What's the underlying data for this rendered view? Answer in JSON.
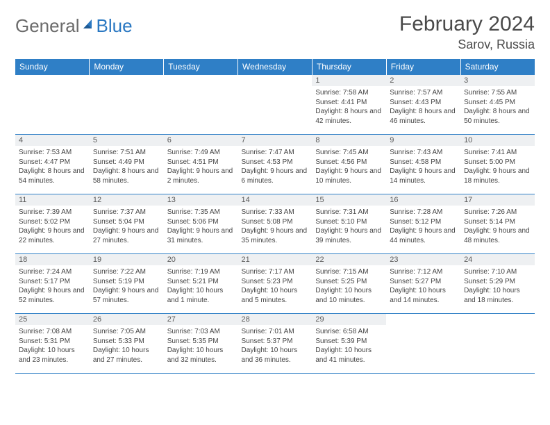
{
  "brand": {
    "part1": "General",
    "part2": "Blue"
  },
  "title": "February 2024",
  "location": "Sarov, Russia",
  "colors": {
    "header_bg": "#2f7fc6",
    "header_text": "#ffffff",
    "daynum_bg": "#eef0f2",
    "text": "#444444",
    "border": "#2f7fc6",
    "logo_gray": "#6b6b6b",
    "logo_blue": "#2a78c2"
  },
  "weekdays": [
    "Sunday",
    "Monday",
    "Tuesday",
    "Wednesday",
    "Thursday",
    "Friday",
    "Saturday"
  ],
  "weeks": [
    [
      null,
      null,
      null,
      null,
      {
        "n": "1",
        "sunrise": "Sunrise: 7:58 AM",
        "sunset": "Sunset: 4:41 PM",
        "daylight": "Daylight: 8 hours and 42 minutes."
      },
      {
        "n": "2",
        "sunrise": "Sunrise: 7:57 AM",
        "sunset": "Sunset: 4:43 PM",
        "daylight": "Daylight: 8 hours and 46 minutes."
      },
      {
        "n": "3",
        "sunrise": "Sunrise: 7:55 AM",
        "sunset": "Sunset: 4:45 PM",
        "daylight": "Daylight: 8 hours and 50 minutes."
      }
    ],
    [
      {
        "n": "4",
        "sunrise": "Sunrise: 7:53 AM",
        "sunset": "Sunset: 4:47 PM",
        "daylight": "Daylight: 8 hours and 54 minutes."
      },
      {
        "n": "5",
        "sunrise": "Sunrise: 7:51 AM",
        "sunset": "Sunset: 4:49 PM",
        "daylight": "Daylight: 8 hours and 58 minutes."
      },
      {
        "n": "6",
        "sunrise": "Sunrise: 7:49 AM",
        "sunset": "Sunset: 4:51 PM",
        "daylight": "Daylight: 9 hours and 2 minutes."
      },
      {
        "n": "7",
        "sunrise": "Sunrise: 7:47 AM",
        "sunset": "Sunset: 4:53 PM",
        "daylight": "Daylight: 9 hours and 6 minutes."
      },
      {
        "n": "8",
        "sunrise": "Sunrise: 7:45 AM",
        "sunset": "Sunset: 4:56 PM",
        "daylight": "Daylight: 9 hours and 10 minutes."
      },
      {
        "n": "9",
        "sunrise": "Sunrise: 7:43 AM",
        "sunset": "Sunset: 4:58 PM",
        "daylight": "Daylight: 9 hours and 14 minutes."
      },
      {
        "n": "10",
        "sunrise": "Sunrise: 7:41 AM",
        "sunset": "Sunset: 5:00 PM",
        "daylight": "Daylight: 9 hours and 18 minutes."
      }
    ],
    [
      {
        "n": "11",
        "sunrise": "Sunrise: 7:39 AM",
        "sunset": "Sunset: 5:02 PM",
        "daylight": "Daylight: 9 hours and 22 minutes."
      },
      {
        "n": "12",
        "sunrise": "Sunrise: 7:37 AM",
        "sunset": "Sunset: 5:04 PM",
        "daylight": "Daylight: 9 hours and 27 minutes."
      },
      {
        "n": "13",
        "sunrise": "Sunrise: 7:35 AM",
        "sunset": "Sunset: 5:06 PM",
        "daylight": "Daylight: 9 hours and 31 minutes."
      },
      {
        "n": "14",
        "sunrise": "Sunrise: 7:33 AM",
        "sunset": "Sunset: 5:08 PM",
        "daylight": "Daylight: 9 hours and 35 minutes."
      },
      {
        "n": "15",
        "sunrise": "Sunrise: 7:31 AM",
        "sunset": "Sunset: 5:10 PM",
        "daylight": "Daylight: 9 hours and 39 minutes."
      },
      {
        "n": "16",
        "sunrise": "Sunrise: 7:28 AM",
        "sunset": "Sunset: 5:12 PM",
        "daylight": "Daylight: 9 hours and 44 minutes."
      },
      {
        "n": "17",
        "sunrise": "Sunrise: 7:26 AM",
        "sunset": "Sunset: 5:14 PM",
        "daylight": "Daylight: 9 hours and 48 minutes."
      }
    ],
    [
      {
        "n": "18",
        "sunrise": "Sunrise: 7:24 AM",
        "sunset": "Sunset: 5:17 PM",
        "daylight": "Daylight: 9 hours and 52 minutes."
      },
      {
        "n": "19",
        "sunrise": "Sunrise: 7:22 AM",
        "sunset": "Sunset: 5:19 PM",
        "daylight": "Daylight: 9 hours and 57 minutes."
      },
      {
        "n": "20",
        "sunrise": "Sunrise: 7:19 AM",
        "sunset": "Sunset: 5:21 PM",
        "daylight": "Daylight: 10 hours and 1 minute."
      },
      {
        "n": "21",
        "sunrise": "Sunrise: 7:17 AM",
        "sunset": "Sunset: 5:23 PM",
        "daylight": "Daylight: 10 hours and 5 minutes."
      },
      {
        "n": "22",
        "sunrise": "Sunrise: 7:15 AM",
        "sunset": "Sunset: 5:25 PM",
        "daylight": "Daylight: 10 hours and 10 minutes."
      },
      {
        "n": "23",
        "sunrise": "Sunrise: 7:12 AM",
        "sunset": "Sunset: 5:27 PM",
        "daylight": "Daylight: 10 hours and 14 minutes."
      },
      {
        "n": "24",
        "sunrise": "Sunrise: 7:10 AM",
        "sunset": "Sunset: 5:29 PM",
        "daylight": "Daylight: 10 hours and 18 minutes."
      }
    ],
    [
      {
        "n": "25",
        "sunrise": "Sunrise: 7:08 AM",
        "sunset": "Sunset: 5:31 PM",
        "daylight": "Daylight: 10 hours and 23 minutes."
      },
      {
        "n": "26",
        "sunrise": "Sunrise: 7:05 AM",
        "sunset": "Sunset: 5:33 PM",
        "daylight": "Daylight: 10 hours and 27 minutes."
      },
      {
        "n": "27",
        "sunrise": "Sunrise: 7:03 AM",
        "sunset": "Sunset: 5:35 PM",
        "daylight": "Daylight: 10 hours and 32 minutes."
      },
      {
        "n": "28",
        "sunrise": "Sunrise: 7:01 AM",
        "sunset": "Sunset: 5:37 PM",
        "daylight": "Daylight: 10 hours and 36 minutes."
      },
      {
        "n": "29",
        "sunrise": "Sunrise: 6:58 AM",
        "sunset": "Sunset: 5:39 PM",
        "daylight": "Daylight: 10 hours and 41 minutes."
      },
      null,
      null
    ]
  ]
}
